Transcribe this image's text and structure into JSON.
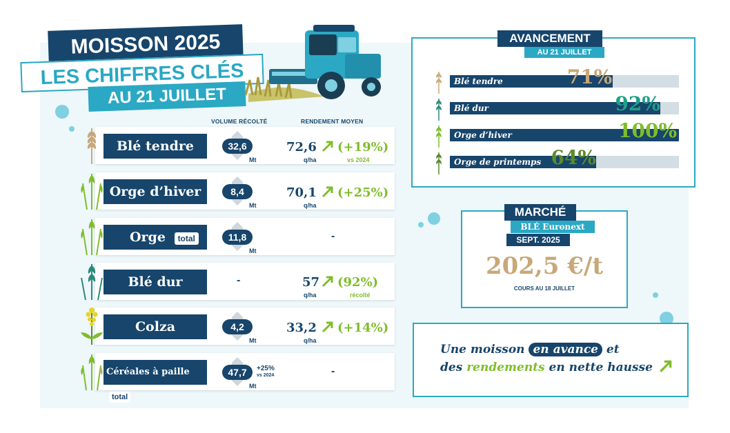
{
  "title": {
    "line1": "MOISSON 2025",
    "line2": "LES CHIFFRES CLÉS",
    "line3": "AU 21 JUILLET"
  },
  "table": {
    "col_volume": "VOLUME RÉCOLTÉ",
    "col_yield": "RENDEMENT MOYEN",
    "rows": [
      {
        "crop": "Blé tendre",
        "tag": "",
        "volume": "32,6",
        "volume_unit": "Mt",
        "volume_note": "",
        "volume_note2": "",
        "yield": "72,6",
        "yield_unit": "q/ha",
        "change": "(+19%)",
        "change_note": "vs 2024",
        "dash_volume": "",
        "dash_yield": ""
      },
      {
        "crop": "Orge d’hiver",
        "tag": "",
        "volume": "8,4",
        "volume_unit": "Mt",
        "volume_note": "",
        "volume_note2": "",
        "yield": "70,1",
        "yield_unit": "q/ha",
        "change": "(+25%)",
        "change_note": "",
        "dash_volume": "",
        "dash_yield": ""
      },
      {
        "crop": "Orge",
        "tag": "total",
        "volume": "11,8",
        "volume_unit": "Mt",
        "volume_note": "",
        "volume_note2": "",
        "yield": "",
        "yield_unit": "",
        "change": "",
        "change_note": "",
        "dash_volume": "",
        "dash_yield": "-"
      },
      {
        "crop": "Blé dur",
        "tag": "",
        "volume": "",
        "volume_unit": "",
        "volume_note": "",
        "volume_note2": "",
        "yield": "57",
        "yield_unit": "q/ha",
        "change": "(92%)",
        "change_note": "récolté",
        "dash_volume": "-",
        "dash_yield": ""
      },
      {
        "crop": "Colza",
        "tag": "",
        "volume": "4,2",
        "volume_unit": "Mt",
        "volume_note": "",
        "volume_note2": "",
        "yield": "33,2",
        "yield_unit": "q/ha",
        "change": "(+14%)",
        "change_note": "",
        "dash_volume": "",
        "dash_yield": ""
      },
      {
        "crop": "Céréales à paille",
        "tag": "total",
        "volume": "47,7",
        "volume_unit": "Mt",
        "volume_note": "+25%",
        "volume_note2": "vs 2024",
        "yield": "",
        "yield_unit": "",
        "change": "",
        "change_note": "",
        "dash_volume": "",
        "dash_yield": "-"
      }
    ]
  },
  "progress": {
    "title": "AVANCEMENT",
    "subtitle": "AU 21 JUILLET",
    "items": [
      {
        "label": "Blé tendre",
        "percent": 71,
        "percent_text": "71%",
        "color": "#c8a878"
      },
      {
        "label": "Blé dur",
        "percent": 92,
        "percent_text": "92%",
        "color": "#1fa08a"
      },
      {
        "label": "Orge d’hiver",
        "percent": 100,
        "percent_text": "100%",
        "color": "#7fbd2b"
      },
      {
        "label": "Orge de printemps",
        "percent": 64,
        "percent_text": "64%",
        "color": "#5a8a2a"
      }
    ]
  },
  "market": {
    "title": "MARCHÉ",
    "product": "BLÉ Euronext",
    "period": "SEPT. 2025",
    "price": "202,5 €/t",
    "note": "COURS AU 18 JUILLET"
  },
  "message": {
    "part1": "Une moisson",
    "highlight": "en avance",
    "part2": "et",
    "part3": "des",
    "green": "rendements",
    "part4": "en nette hausse"
  },
  "colors": {
    "navy": "#17456b",
    "teal": "#2aa8c4",
    "green": "#7fbd2b",
    "tan": "#c8a878"
  }
}
